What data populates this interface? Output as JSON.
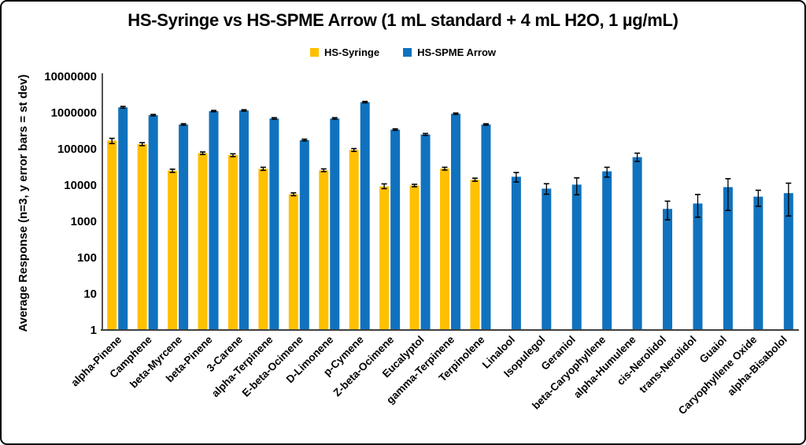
{
  "chart_data": {
    "type": "bar",
    "title": "HS-Syringe vs HS-SPME Arrow (1 mL standard + 4 mL H2O, 1 µg/mL)",
    "ylabel": "Average Response (n=3, y error bars = st dev)",
    "xlabel": "",
    "y_scale": "log",
    "ylim": [
      1,
      10000000
    ],
    "y_ticks": [
      1,
      10,
      100,
      1000,
      10000,
      100000,
      1000000,
      10000000
    ],
    "grid": false,
    "legend_position": "top",
    "error_bars": "standard deviation, vertical",
    "categories": [
      "alpha-Pinene",
      "Camphene",
      "beta-Myrcene",
      "beta-Pinene",
      "3-Carene",
      "alpha-Terpinene",
      "E-beta-Ocimene",
      "D-Limonene",
      "p-Cymene",
      "Z-beta-Ocimene",
      "Eucalyptol",
      "gamma-Terpinene",
      "Terpinolene",
      "Linalool",
      "Isopulegol",
      "Geraniol",
      "beta-Caryophyllene",
      "alpha-Humulene",
      "cis-Nerolidol",
      "trans-Nerolidol",
      "Guaiol",
      "Caryophyllene Oxide",
      "alpha-Bisabolol"
    ],
    "series": [
      {
        "name": "HS-Syringe",
        "color": "#FFC000",
        "values": [
          170000,
          135000,
          25000,
          76000,
          67000,
          28000,
          5600,
          25500,
          93000,
          9200,
          9700,
          28500,
          14000,
          null,
          null,
          null,
          null,
          null,
          null,
          null,
          null,
          null,
          null
        ],
        "err_low": [
          140000,
          123000,
          22500,
          70000,
          61000,
          25500,
          5100,
          23500,
          85000,
          8000,
          9000,
          26000,
          12800,
          null,
          null,
          null,
          null,
          null,
          null,
          null,
          null,
          null,
          null
        ],
        "err_high": [
          195000,
          148000,
          27500,
          82000,
          73000,
          31000,
          6100,
          28000,
          102000,
          10800,
          10500,
          31000,
          15500,
          null,
          null,
          null,
          null,
          null,
          null,
          null,
          null,
          null,
          null
        ]
      },
      {
        "name": "HS-SPME Arrow",
        "color": "#1072BE",
        "values": [
          1400000,
          850000,
          470000,
          1100000,
          1150000,
          690000,
          175000,
          690000,
          1950000,
          340000,
          250000,
          930000,
          470000,
          17000,
          8000,
          10300,
          24000,
          59000,
          2200,
          3100,
          8800,
          4800,
          6000
        ],
        "err_low": [
          1330000,
          815000,
          450000,
          1060000,
          1100000,
          660000,
          166000,
          660000,
          1870000,
          325000,
          235000,
          890000,
          450000,
          12200,
          5600,
          5400,
          16600,
          45000,
          1100,
          1300,
          2000,
          2600,
          1400
        ],
        "err_high": [
          1480000,
          890000,
          495000,
          1150000,
          1200000,
          725000,
          185000,
          725000,
          2040000,
          357000,
          266000,
          975000,
          492000,
          22200,
          10900,
          15800,
          31000,
          76000,
          3600,
          5500,
          15000,
          7200,
          11300
        ]
      }
    ],
    "colors": {
      "y_axis_line": "#262626",
      "baseline": "#404040",
      "error_bar": "#000000",
      "background": "#ffffff",
      "text": "#000000"
    }
  }
}
